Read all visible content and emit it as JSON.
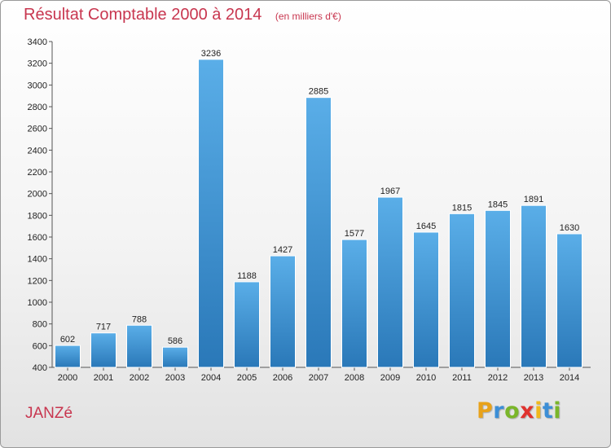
{
  "chart_data": {
    "type": "bar",
    "title": "Résultat Comptable 2000 à 2014",
    "subtitle": "(en milliers d'€)",
    "categories": [
      "2000",
      "2001",
      "2002",
      "2003",
      "2004",
      "2005",
      "2006",
      "2007",
      "2008",
      "2009",
      "2010",
      "2011",
      "2012",
      "2013",
      "2014"
    ],
    "values": [
      602,
      717,
      788,
      586,
      3236,
      1188,
      1427,
      2885,
      1577,
      1967,
      1645,
      1815,
      1845,
      1891,
      1630
    ],
    "ylim": [
      400,
      3400
    ],
    "yticks": [
      400,
      600,
      800,
      1000,
      1200,
      1400,
      1600,
      1800,
      2000,
      2200,
      2400,
      2600,
      2800,
      3000,
      3200,
      3400
    ],
    "xlabel": "",
    "ylabel": "",
    "grid": false,
    "colors": {
      "bar_top": "#5aaee8",
      "bar_bottom": "#2a78b8",
      "axis": "#555555"
    }
  },
  "footer": {
    "commune": "JANZé",
    "brand_letters": [
      {
        "char": "P",
        "color": "#e8a21a"
      },
      {
        "char": "r",
        "color": "#3c8ed6"
      },
      {
        "char": "o",
        "color": "#7ab62a"
      },
      {
        "char": "x",
        "color": "#e0322e"
      },
      {
        "char": "i",
        "color": "#f0b81c"
      },
      {
        "char": "t",
        "color": "#3c8ed6"
      },
      {
        "char": "i",
        "color": "#7ab62a"
      }
    ]
  }
}
